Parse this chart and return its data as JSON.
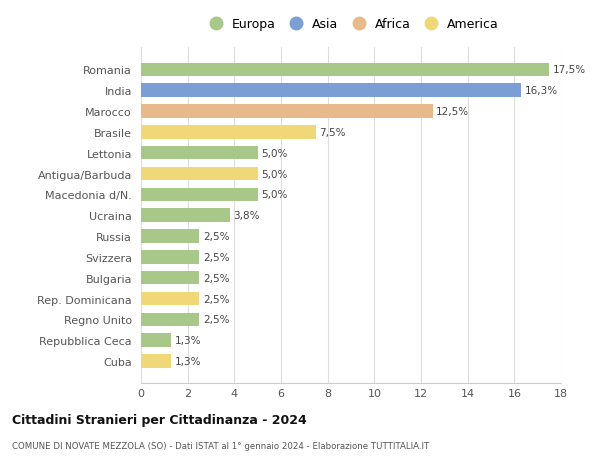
{
  "categories": [
    "Cuba",
    "Repubblica Ceca",
    "Regno Unito",
    "Rep. Dominicana",
    "Bulgaria",
    "Svizzera",
    "Russia",
    "Ucraina",
    "Macedonia d/N.",
    "Antigua/Barbuda",
    "Lettonia",
    "Brasile",
    "Marocco",
    "India",
    "Romania"
  ],
  "values": [
    1.3,
    1.3,
    2.5,
    2.5,
    2.5,
    2.5,
    2.5,
    3.8,
    5.0,
    5.0,
    5.0,
    7.5,
    12.5,
    16.3,
    17.5
  ],
  "continents": [
    "America",
    "Europa",
    "Europa",
    "America",
    "Europa",
    "Europa",
    "Europa",
    "Europa",
    "Europa",
    "America",
    "Europa",
    "America",
    "Africa",
    "Asia",
    "Europa"
  ],
  "colors": {
    "Europa": "#a8c88a",
    "Asia": "#7b9fd4",
    "Africa": "#e8b98a",
    "America": "#f0d878"
  },
  "labels": [
    "1,3%",
    "1,3%",
    "2,5%",
    "2,5%",
    "2,5%",
    "2,5%",
    "2,5%",
    "3,8%",
    "5,0%",
    "5,0%",
    "5,0%",
    "7,5%",
    "12,5%",
    "16,3%",
    "17,5%"
  ],
  "title": "Cittadini Stranieri per Cittadinanza - 2024",
  "subtitle": "COMUNE DI NOVATE MEZZOLA (SO) - Dati ISTAT al 1° gennaio 2024 - Elaborazione TUTTITALIA.IT",
  "xlim": [
    0,
    18
  ],
  "xticks": [
    0,
    2,
    4,
    6,
    8,
    10,
    12,
    14,
    16,
    18
  ],
  "legend_labels": [
    "Europa",
    "Asia",
    "Africa",
    "America"
  ],
  "background_color": "#ffffff",
  "grid_color": "#dddddd",
  "bar_height": 0.65,
  "label_fontsize": 7.5,
  "tick_fontsize": 8.0,
  "label_color": "#444444",
  "ytick_color": "#555555"
}
